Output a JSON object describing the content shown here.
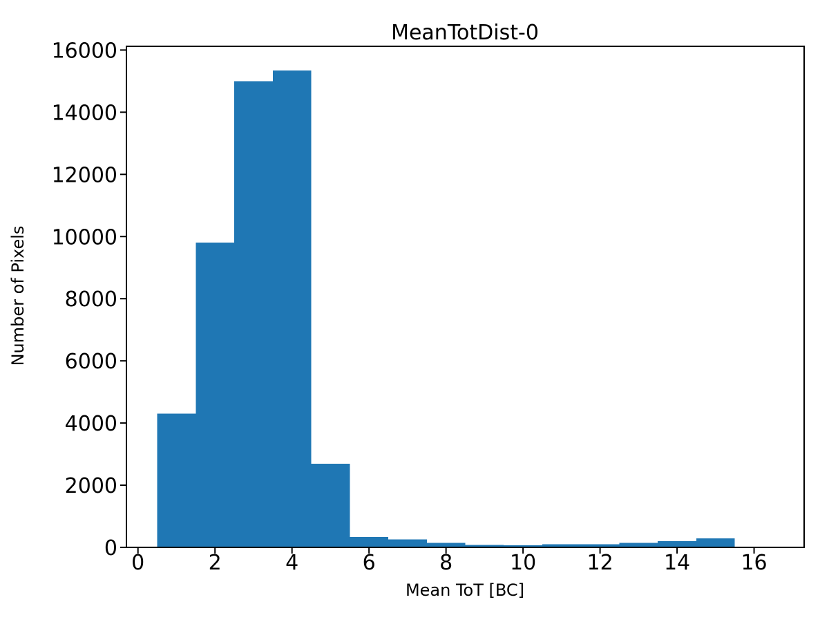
{
  "chart_data": {
    "type": "bar",
    "subtype": "histogram",
    "title": "MeanTotDist-0",
    "xlabel": "Mean ToT [BC]",
    "ylabel": "Number of Pixels",
    "bin_edges": [
      0.5,
      1.5,
      2.5,
      3.5,
      4.5,
      5.5,
      6.5,
      7.5,
      8.5,
      9.5,
      10.5,
      11.5,
      12.5,
      13.5,
      14.5,
      15.5
    ],
    "counts": [
      4300,
      9800,
      15000,
      15340,
      2690,
      330,
      260,
      150,
      80,
      70,
      100,
      100,
      140,
      200,
      290
    ],
    "xticks": [
      0,
      2,
      4,
      6,
      8,
      10,
      12,
      14,
      16
    ],
    "yticks": [
      0,
      2000,
      4000,
      6000,
      8000,
      10000,
      12000,
      14000,
      16000
    ],
    "xlim": [
      -0.3,
      17.3
    ],
    "ylim": [
      0,
      16120
    ],
    "bar_color": "#1f77b4",
    "axis_color": "#000000",
    "background_color": "#ffffff",
    "grid": false,
    "legend": false
  }
}
